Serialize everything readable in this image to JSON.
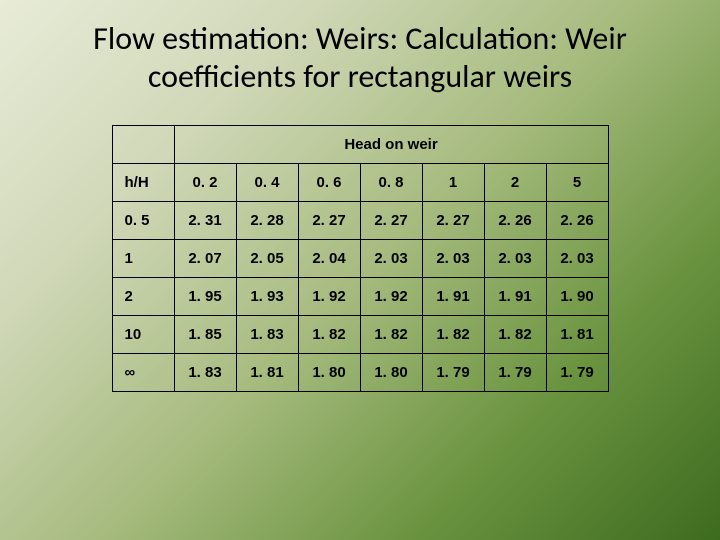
{
  "title": "Flow estimation: Weirs: Calculation: Weir coefficients for rectangular weirs",
  "spanner": "Head on weir",
  "corner_label": "h/H",
  "col_headers": [
    "0. 2",
    "0. 4",
    "0. 6",
    "0. 8",
    "1",
    "2",
    "5"
  ],
  "row_headers": [
    "0. 5",
    "1",
    "2",
    "10",
    "∞"
  ],
  "rows": [
    [
      "2. 31",
      "2. 28",
      "2. 27",
      "2. 27",
      "2. 27",
      "2. 26",
      "2. 26"
    ],
    [
      "2. 07",
      "2. 05",
      "2. 04",
      "2. 03",
      "2. 03",
      "2. 03",
      "2. 03"
    ],
    [
      "1. 95",
      "1. 93",
      "1. 92",
      "1. 92",
      "1. 91",
      "1. 91",
      "1. 90"
    ],
    [
      "1. 85",
      "1. 83",
      "1. 82",
      "1. 82",
      "1. 82",
      "1. 82",
      "1. 81"
    ],
    [
      "1. 83",
      "1. 81",
      "1. 80",
      "1. 80",
      "1. 79",
      "1. 79",
      "1. 79"
    ]
  ],
  "style": {
    "title_fontsize": 32,
    "title_color": "#000000",
    "cell_fontsize": 15,
    "cell_fontweight": "bold",
    "border_color": "#000000",
    "background_gradient": [
      "#e8ecd8",
      "#d0d8b8",
      "#a8bc80",
      "#6b9440",
      "#3d6b1f"
    ],
    "table_bg_transparent": true,
    "num_columns": 8,
    "num_data_cols": 7,
    "num_data_rows": 5
  }
}
